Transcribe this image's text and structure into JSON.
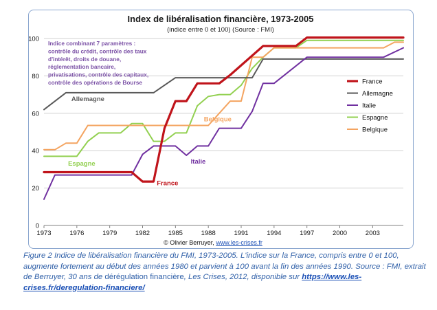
{
  "chart_data": {
    "type": "line",
    "title": "Index de libéralisation financière, 1973-2005",
    "subtitle": "(indice entre 0 et 100) (Source : FMI)",
    "xlim": [
      1973,
      2005.8
    ],
    "ylim": [
      0,
      100
    ],
    "x_ticks": [
      "1973",
      "1976",
      "1979",
      "1982",
      "1985",
      "1988",
      "1991",
      "1994",
      "1997",
      "2000",
      "2003"
    ],
    "y_ticks": [
      "0",
      "20",
      "40",
      "60",
      "80",
      "100"
    ],
    "grid": "horizontal",
    "legend_position": "right",
    "note_lines": [
      "Indice combinant 7 paramètres :",
      "contrôle du crédit, contrôle des taux",
      "d'intérêt, droits de douane,",
      "réglementation bancaire,",
      "privatisations,  contrôle des capitaux,",
      "contrôle des opérations de Bourse"
    ],
    "credit": "© Olivier Berruyer, ",
    "credit_link": "www.les-crises.fr",
    "series": [
      {
        "name": "France",
        "color": "#c0141b",
        "points": [
          [
            1973,
            28.5
          ],
          [
            1981,
            28.5
          ],
          [
            1982,
            23.5
          ],
          [
            1983,
            23.5
          ],
          [
            1984,
            52
          ],
          [
            1985,
            66.5
          ],
          [
            1986,
            66.5
          ],
          [
            1987,
            76
          ],
          [
            1989,
            76
          ],
          [
            1990,
            80.5
          ],
          [
            1993,
            96
          ],
          [
            1996,
            96
          ],
          [
            1997,
            100.5
          ],
          [
            2005.8,
            100.5
          ]
        ]
      },
      {
        "name": "Allemagne",
        "color": "#595959",
        "points": [
          [
            1973,
            62
          ],
          [
            1975,
            71
          ],
          [
            1983,
            71
          ],
          [
            1985,
            79
          ],
          [
            1992,
            79
          ],
          [
            1993,
            89
          ],
          [
            2005.8,
            89
          ]
        ]
      },
      {
        "name": "Italie",
        "color": "#7030a0",
        "points": [
          [
            1973,
            14
          ],
          [
            1974,
            27
          ],
          [
            1981,
            27
          ],
          [
            1982,
            38
          ],
          [
            1983,
            42.5
          ],
          [
            1985,
            42.5
          ],
          [
            1986,
            37.5
          ],
          [
            1987,
            42.5
          ],
          [
            1988,
            42.5
          ],
          [
            1989,
            52
          ],
          [
            1991,
            52
          ],
          [
            1992,
            61
          ],
          [
            1993,
            76
          ],
          [
            1994,
            76
          ],
          [
            1997,
            90
          ],
          [
            2004,
            90
          ],
          [
            2005.8,
            95
          ]
        ]
      },
      {
        "name": "Espagne",
        "color": "#92d050",
        "points": [
          [
            1973,
            37
          ],
          [
            1976,
            37
          ],
          [
            1977,
            45
          ],
          [
            1978,
            49.5
          ],
          [
            1980,
            49.5
          ],
          [
            1981,
            54.5
          ],
          [
            1982,
            54.5
          ],
          [
            1983,
            45
          ],
          [
            1984,
            45
          ],
          [
            1985,
            49.5
          ],
          [
            1986,
            49.5
          ],
          [
            1987,
            64
          ],
          [
            1988,
            69
          ],
          [
            1989,
            70
          ],
          [
            1990,
            70
          ],
          [
            1991,
            75
          ],
          [
            1992,
            84
          ],
          [
            1993,
            90
          ],
          [
            1994,
            95
          ],
          [
            1996,
            95
          ],
          [
            1997,
            99
          ],
          [
            2005.8,
            99
          ]
        ]
      },
      {
        "name": "Belgique",
        "color": "#f4a460",
        "points": [
          [
            1973,
            40.5
          ],
          [
            1974,
            40.5
          ],
          [
            1975,
            44
          ],
          [
            1976,
            44
          ],
          [
            1977,
            53.5
          ],
          [
            1988,
            53.5
          ],
          [
            1989,
            60
          ],
          [
            1990,
            66.5
          ],
          [
            1991,
            66.5
          ],
          [
            1992,
            90
          ],
          [
            1993,
            90
          ],
          [
            1994,
            95
          ],
          [
            2004,
            95
          ],
          [
            2005,
            98
          ],
          [
            2005.8,
            98
          ]
        ]
      }
    ],
    "annotations": [
      {
        "text": "Allemagne",
        "x": 1975.5,
        "y": 66.5,
        "color": "#595959"
      },
      {
        "text": "Espagne",
        "x": 1975.2,
        "y": 32,
        "color": "#92d050"
      },
      {
        "text": "France",
        "x": 1983.3,
        "y": 21.5,
        "color": "#c0141b"
      },
      {
        "text": "Italie",
        "x": 1986.4,
        "y": 33,
        "color": "#7030a0"
      },
      {
        "text": "Belgique",
        "x": 1987.6,
        "y": 55.7,
        "color": "#f4a460"
      }
    ]
  },
  "caption": {
    "lead": "Figure 2 Indice de libéralisation financière du FMI, 1973-2005.  L'indice sur la France, compris entre 0 et 100, augmente fortement au début des années 1980 et parvient à 100 avant la fin des années 1990. Source : FMI, extrait de Berruyer, 30 ans de ",
    "source_title": "dérégulation financière",
    "middle": ", Les Crises, 2012, disponible sur ",
    "link": "https://www.les-crises.fr/deregulation-financiere/"
  }
}
